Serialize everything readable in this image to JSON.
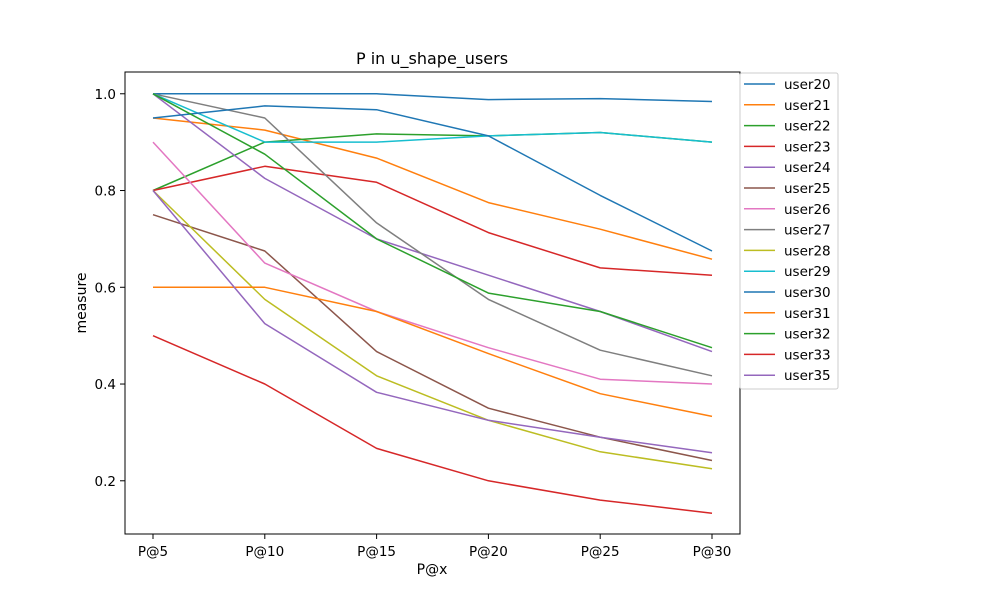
{
  "chart_data": {
    "type": "line",
    "title": "P in u_shape_users",
    "xlabel": "P@x",
    "ylabel": "measure",
    "categories": [
      "P@5",
      "P@10",
      "P@15",
      "P@20",
      "P@25",
      "P@30"
    ],
    "ylim": [
      0.09,
      1.045
    ],
    "yticks": [
      0.2,
      0.4,
      0.6,
      0.8,
      1.0
    ],
    "ytick_labels": [
      "0.2",
      "0.4",
      "0.6",
      "0.8",
      "1.0"
    ],
    "grid": false,
    "legend_position": "upper-right-outside",
    "series": [
      {
        "name": "user20",
        "color": "#1f77b4",
        "values": [
          1.0,
          1.0,
          1.0,
          0.988,
          0.99,
          0.984
        ]
      },
      {
        "name": "user21",
        "color": "#ff7f0e",
        "values": [
          0.95,
          0.925,
          0.867,
          0.775,
          0.72,
          0.658
        ]
      },
      {
        "name": "user22",
        "color": "#2ca02c",
        "values": [
          0.8,
          0.9,
          0.917,
          0.913,
          0.92,
          0.9
        ]
      },
      {
        "name": "user23",
        "color": "#d62728",
        "values": [
          0.8,
          0.85,
          0.817,
          0.713,
          0.64,
          0.625
        ]
      },
      {
        "name": "user24",
        "color": "#9467bd",
        "values": [
          1.0,
          0.825,
          0.7,
          0.625,
          0.55,
          0.467
        ]
      },
      {
        "name": "user25",
        "color": "#8c564b",
        "values": [
          0.75,
          0.675,
          0.467,
          0.35,
          0.29,
          0.242
        ]
      },
      {
        "name": "user26",
        "color": "#e377c2",
        "values": [
          0.9,
          0.65,
          0.55,
          0.475,
          0.41,
          0.4
        ]
      },
      {
        "name": "user27",
        "color": "#7f7f7f",
        "values": [
          1.0,
          0.95,
          0.733,
          0.575,
          0.47,
          0.417
        ]
      },
      {
        "name": "user28",
        "color": "#bcbd22",
        "values": [
          0.8,
          0.575,
          0.417,
          0.325,
          0.26,
          0.225
        ]
      },
      {
        "name": "user29",
        "color": "#17becf",
        "values": [
          1.0,
          0.9,
          0.9,
          0.913,
          0.92,
          0.9
        ]
      },
      {
        "name": "user30",
        "color": "#1f77b4",
        "values": [
          0.95,
          0.975,
          0.967,
          0.913,
          0.79,
          0.675
        ]
      },
      {
        "name": "user31",
        "color": "#ff7f0e",
        "values": [
          0.6,
          0.6,
          0.55,
          0.463,
          0.38,
          0.333
        ]
      },
      {
        "name": "user32",
        "color": "#2ca02c",
        "values": [
          1.0,
          0.875,
          0.7,
          0.588,
          0.55,
          0.475
        ]
      },
      {
        "name": "user33",
        "color": "#d62728",
        "values": [
          0.5,
          0.4,
          0.267,
          0.2,
          0.16,
          0.133
        ]
      },
      {
        "name": "user35",
        "color": "#9467bd",
        "values": [
          0.8,
          0.525,
          0.383,
          0.325,
          0.29,
          0.258
        ]
      }
    ]
  }
}
